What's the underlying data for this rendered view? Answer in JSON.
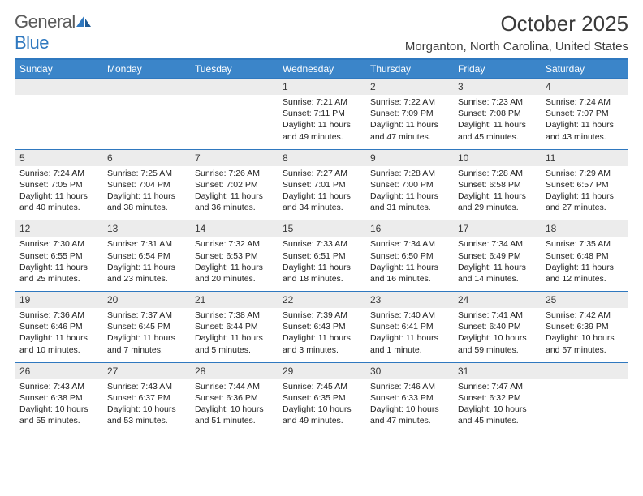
{
  "logo": {
    "word1": "General",
    "word2": "Blue"
  },
  "title": "October 2025",
  "subtitle": "Morganton, North Carolina, United States",
  "colors": {
    "accent": "#3b85c9",
    "rule": "#2f78bf",
    "dayStrip": "#ececec",
    "text": "#3a3a3a",
    "bodyText": "#222222",
    "bg": "#ffffff"
  },
  "dayHeaders": [
    "Sunday",
    "Monday",
    "Tuesday",
    "Wednesday",
    "Thursday",
    "Friday",
    "Saturday"
  ],
  "weeks": [
    [
      null,
      null,
      null,
      {
        "n": "1",
        "sunrise": "7:21 AM",
        "sunset": "7:11 PM",
        "daylight": "11 hours and 49 minutes."
      },
      {
        "n": "2",
        "sunrise": "7:22 AM",
        "sunset": "7:09 PM",
        "daylight": "11 hours and 47 minutes."
      },
      {
        "n": "3",
        "sunrise": "7:23 AM",
        "sunset": "7:08 PM",
        "daylight": "11 hours and 45 minutes."
      },
      {
        "n": "4",
        "sunrise": "7:24 AM",
        "sunset": "7:07 PM",
        "daylight": "11 hours and 43 minutes."
      }
    ],
    [
      {
        "n": "5",
        "sunrise": "7:24 AM",
        "sunset": "7:05 PM",
        "daylight": "11 hours and 40 minutes."
      },
      {
        "n": "6",
        "sunrise": "7:25 AM",
        "sunset": "7:04 PM",
        "daylight": "11 hours and 38 minutes."
      },
      {
        "n": "7",
        "sunrise": "7:26 AM",
        "sunset": "7:02 PM",
        "daylight": "11 hours and 36 minutes."
      },
      {
        "n": "8",
        "sunrise": "7:27 AM",
        "sunset": "7:01 PM",
        "daylight": "11 hours and 34 minutes."
      },
      {
        "n": "9",
        "sunrise": "7:28 AM",
        "sunset": "7:00 PM",
        "daylight": "11 hours and 31 minutes."
      },
      {
        "n": "10",
        "sunrise": "7:28 AM",
        "sunset": "6:58 PM",
        "daylight": "11 hours and 29 minutes."
      },
      {
        "n": "11",
        "sunrise": "7:29 AM",
        "sunset": "6:57 PM",
        "daylight": "11 hours and 27 minutes."
      }
    ],
    [
      {
        "n": "12",
        "sunrise": "7:30 AM",
        "sunset": "6:55 PM",
        "daylight": "11 hours and 25 minutes."
      },
      {
        "n": "13",
        "sunrise": "7:31 AM",
        "sunset": "6:54 PM",
        "daylight": "11 hours and 23 minutes."
      },
      {
        "n": "14",
        "sunrise": "7:32 AM",
        "sunset": "6:53 PM",
        "daylight": "11 hours and 20 minutes."
      },
      {
        "n": "15",
        "sunrise": "7:33 AM",
        "sunset": "6:51 PM",
        "daylight": "11 hours and 18 minutes."
      },
      {
        "n": "16",
        "sunrise": "7:34 AM",
        "sunset": "6:50 PM",
        "daylight": "11 hours and 16 minutes."
      },
      {
        "n": "17",
        "sunrise": "7:34 AM",
        "sunset": "6:49 PM",
        "daylight": "11 hours and 14 minutes."
      },
      {
        "n": "18",
        "sunrise": "7:35 AM",
        "sunset": "6:48 PM",
        "daylight": "11 hours and 12 minutes."
      }
    ],
    [
      {
        "n": "19",
        "sunrise": "7:36 AM",
        "sunset": "6:46 PM",
        "daylight": "11 hours and 10 minutes."
      },
      {
        "n": "20",
        "sunrise": "7:37 AM",
        "sunset": "6:45 PM",
        "daylight": "11 hours and 7 minutes."
      },
      {
        "n": "21",
        "sunrise": "7:38 AM",
        "sunset": "6:44 PM",
        "daylight": "11 hours and 5 minutes."
      },
      {
        "n": "22",
        "sunrise": "7:39 AM",
        "sunset": "6:43 PM",
        "daylight": "11 hours and 3 minutes."
      },
      {
        "n": "23",
        "sunrise": "7:40 AM",
        "sunset": "6:41 PM",
        "daylight": "11 hours and 1 minute."
      },
      {
        "n": "24",
        "sunrise": "7:41 AM",
        "sunset": "6:40 PM",
        "daylight": "10 hours and 59 minutes."
      },
      {
        "n": "25",
        "sunrise": "7:42 AM",
        "sunset": "6:39 PM",
        "daylight": "10 hours and 57 minutes."
      }
    ],
    [
      {
        "n": "26",
        "sunrise": "7:43 AM",
        "sunset": "6:38 PM",
        "daylight": "10 hours and 55 minutes."
      },
      {
        "n": "27",
        "sunrise": "7:43 AM",
        "sunset": "6:37 PM",
        "daylight": "10 hours and 53 minutes."
      },
      {
        "n": "28",
        "sunrise": "7:44 AM",
        "sunset": "6:36 PM",
        "daylight": "10 hours and 51 minutes."
      },
      {
        "n": "29",
        "sunrise": "7:45 AM",
        "sunset": "6:35 PM",
        "daylight": "10 hours and 49 minutes."
      },
      {
        "n": "30",
        "sunrise": "7:46 AM",
        "sunset": "6:33 PM",
        "daylight": "10 hours and 47 minutes."
      },
      {
        "n": "31",
        "sunrise": "7:47 AM",
        "sunset": "6:32 PM",
        "daylight": "10 hours and 45 minutes."
      },
      null
    ]
  ],
  "labels": {
    "sunrise": "Sunrise:",
    "sunset": "Sunset:",
    "daylight": "Daylight:"
  }
}
